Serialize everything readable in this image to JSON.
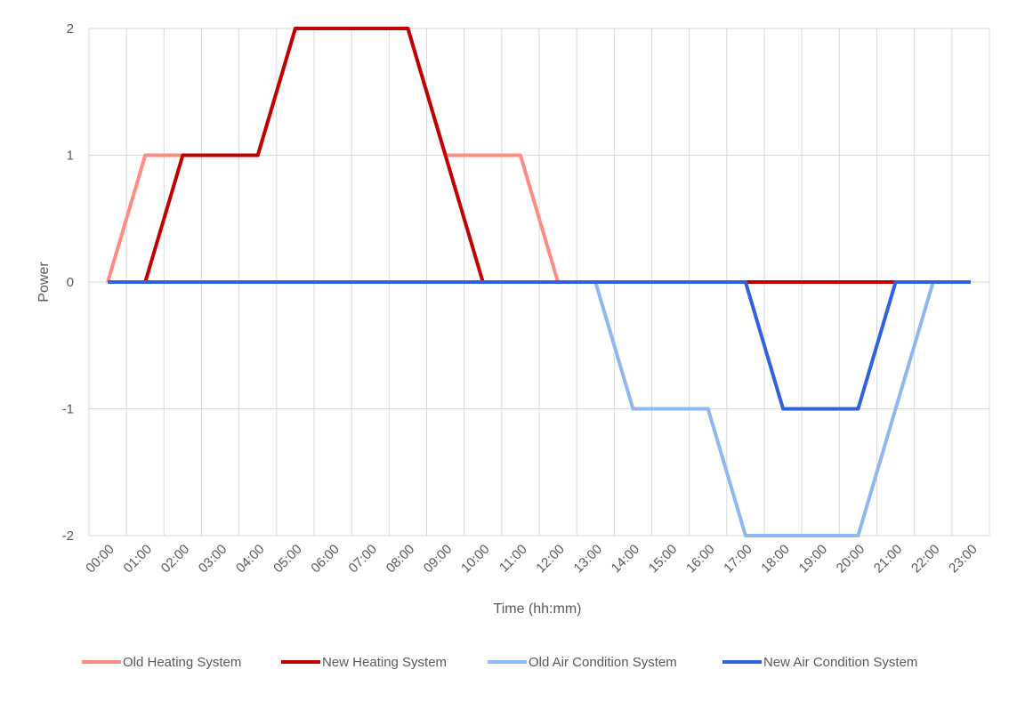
{
  "chart_data": {
    "type": "line",
    "title": "",
    "xlabel": "Time (hh:mm)",
    "ylabel": "Power",
    "ylim": [
      -2,
      2
    ],
    "yticks": [
      "-2",
      "-1",
      "0",
      "1",
      "2"
    ],
    "grid": true,
    "legend_position": "bottom",
    "categories": [
      "00:00",
      "01:00",
      "02:00",
      "03:00",
      "04:00",
      "05:00",
      "06:00",
      "07:00",
      "08:00",
      "09:00",
      "10:00",
      "11:00",
      "12:00",
      "13:00",
      "14:00",
      "15:00",
      "16:00",
      "17:00",
      "18:00",
      "19:00",
      "20:00",
      "21:00",
      "22:00",
      "23:00"
    ],
    "series": [
      {
        "name": "Old Heating System",
        "color": "#ff8c82",
        "values": [
          0,
          1,
          1,
          1,
          1,
          2,
          2,
          2,
          2,
          1,
          1,
          1,
          0,
          0,
          0,
          0,
          0,
          0,
          0,
          0,
          0,
          0,
          0,
          0
        ]
      },
      {
        "name": "New Heating System",
        "color": "#c00000",
        "values": [
          0,
          0,
          1,
          1,
          1,
          2,
          2,
          2,
          2,
          1,
          0,
          0,
          0,
          0,
          0,
          0,
          0,
          0,
          0,
          0,
          0,
          0,
          0,
          0
        ]
      },
      {
        "name": "Old Air Condition System",
        "color": "#8fb8f0",
        "values": [
          0,
          0,
          0,
          0,
          0,
          0,
          0,
          0,
          0,
          0,
          0,
          0,
          0,
          0,
          -1,
          -1,
          -1,
          -2,
          -2,
          -2,
          -2,
          -1,
          0,
          0
        ]
      },
      {
        "name": "New Air Condition System",
        "color": "#2f62e0",
        "values": [
          0,
          0,
          0,
          0,
          0,
          0,
          0,
          0,
          0,
          0,
          0,
          0,
          0,
          0,
          0,
          0,
          0,
          0,
          -1,
          -1,
          -1,
          0,
          0,
          0
        ]
      }
    ]
  }
}
